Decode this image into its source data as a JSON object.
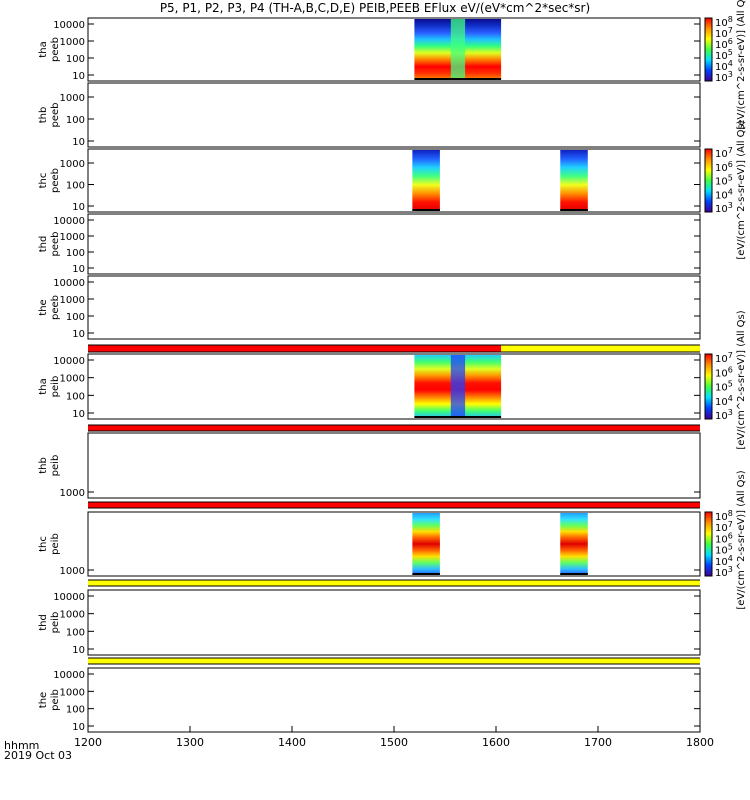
{
  "title": "P5, P1, P2, P3, P4 (TH-A,B,C,D,E) PEIB,PEEB EFlux eV/(eV*cm^2*sec*sr)",
  "footer": {
    "time_label": "hhmm",
    "date_label": "2019 Oct 03"
  },
  "chart_data": {
    "type": "heatmap",
    "x_axis": {
      "range": [
        1200,
        1800
      ],
      "ticks": [
        1200,
        1300,
        1400,
        1500,
        1600,
        1700,
        1800
      ],
      "tick_labels": [
        "1200",
        "1300",
        "1400",
        "1500",
        "1600",
        "1700",
        "1800"
      ]
    },
    "colorbar_units": "[eV/(cm^2-s-sr-eV)] (All Qs)",
    "panels": [
      {
        "name": "peeb-a",
        "ylabel": [
          "tha",
          "peeb"
        ],
        "yticks": [
          "10",
          "100",
          "1000",
          "10000"
        ],
        "colorbar": [
          "10^3",
          "10^4",
          "10^5",
          "10^6",
          "10^7",
          "10^8"
        ],
        "data_intervals": [
          [
            1520,
            1605
          ]
        ]
      },
      {
        "name": "peeb-b",
        "ylabel": [
          "thb",
          "peeb"
        ],
        "yticks": [
          "10",
          "100",
          "1000"
        ],
        "data_intervals": []
      },
      {
        "name": "peeb-c",
        "ylabel": [
          "thc",
          "peeb"
        ],
        "yticks": [
          "10",
          "100",
          "1000"
        ],
        "colorbar": [
          "10^3",
          "10^4",
          "10^5",
          "10^6",
          "10^7"
        ],
        "data_intervals": [
          [
            1518,
            1545
          ],
          [
            1663,
            1690
          ]
        ]
      },
      {
        "name": "peeb-d",
        "ylabel": [
          "thd",
          "peeb"
        ],
        "yticks": [
          "10",
          "100",
          "1000",
          "10000"
        ],
        "data_intervals": []
      },
      {
        "name": "peeb-e",
        "ylabel": [
          "the",
          "peeb"
        ],
        "yticks": [
          "10",
          "100",
          "1000",
          "10000"
        ],
        "data_intervals": []
      },
      {
        "name": "peib-a",
        "ylabel": [
          "tha",
          "peib"
        ],
        "yticks": [
          "10",
          "100",
          "1000",
          "10000"
        ],
        "colorbar": [
          "10^3",
          "10^4",
          "10^5",
          "10^6",
          "10^7"
        ],
        "data_intervals": [
          [
            1520,
            1605
          ]
        ],
        "mode_bar": [
          {
            "from": 1200,
            "to": 1605,
            "color": "#ff0000"
          },
          {
            "from": 1605,
            "to": 1800,
            "color": "#ffff00"
          }
        ]
      },
      {
        "name": "peib-b",
        "ylabel": [
          "thb",
          "peib"
        ],
        "yticks": [
          "1000"
        ],
        "data_intervals": [],
        "mode_bar": [
          {
            "from": 1200,
            "to": 1800,
            "color": "#ff0000"
          }
        ]
      },
      {
        "name": "peib-c",
        "ylabel": [
          "thc",
          "peib"
        ],
        "yticks": [
          "1000"
        ],
        "colorbar": [
          "10^3",
          "10^4",
          "10^5",
          "10^6",
          "10^7",
          "10^8"
        ],
        "data_intervals": [
          [
            1518,
            1545
          ],
          [
            1663,
            1690
          ]
        ],
        "mode_bar": [
          {
            "from": 1200,
            "to": 1800,
            "color": "#ff0000"
          }
        ]
      },
      {
        "name": "peib-d",
        "ylabel": [
          "thd",
          "peib"
        ],
        "yticks": [
          "10",
          "100",
          "1000",
          "10000"
        ],
        "data_intervals": [],
        "mode_bar": [
          {
            "from": 1200,
            "to": 1800,
            "color": "#ffff00"
          }
        ]
      },
      {
        "name": "peib-e",
        "ylabel": [
          "the",
          "peib"
        ],
        "yticks": [
          "10",
          "100",
          "1000",
          "10000"
        ],
        "data_intervals": [],
        "mode_bar": [
          {
            "from": 1200,
            "to": 1800,
            "color": "#ffff00"
          }
        ]
      }
    ]
  }
}
